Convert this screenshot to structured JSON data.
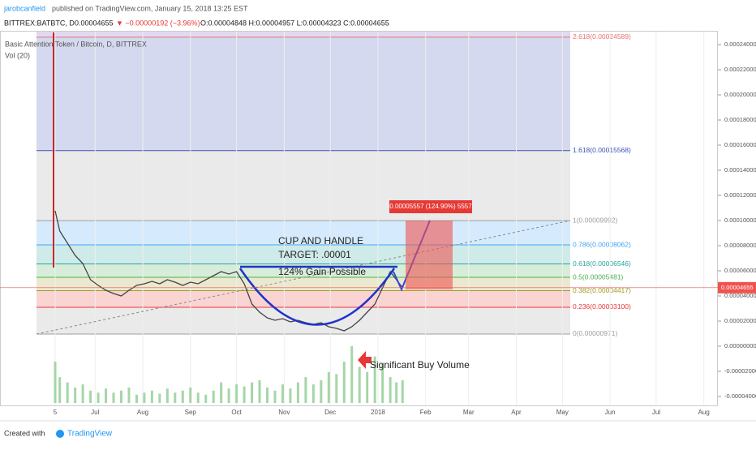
{
  "header": {
    "author": "jarobcanfield",
    "published": "published on TradingView.com, January 15, 2018 13:25 EST",
    "ticker": "BITTREX:BATBTC, D",
    "last": "0.00004655",
    "change": "▼ −0.00000192 (−3.96%)",
    "ohlc": "O:0.00004848 H:0.00004957 L:0.00004323 C:0.00004655"
  },
  "legend": {
    "symbol": "Basic Attention Token / Bitcoin, D, BITTREX",
    "volume": "Vol (20)"
  },
  "chart_data": {
    "type": "line",
    "color": "#444444",
    "x": [
      0,
      3,
      8,
      13,
      18,
      23,
      28,
      33,
      38,
      43,
      48,
      53,
      58,
      63,
      68,
      73,
      78,
      83,
      88,
      93,
      98,
      103,
      108,
      113,
      118,
      123,
      128,
      133,
      138,
      143,
      148,
      153,
      158,
      163,
      168,
      173,
      178,
      183,
      188,
      193,
      198,
      203,
      208,
      213,
      218,
      222,
      226
    ],
    "values": [
      0.00010774,
      9.161e-05,
      8.194e-05,
      7.226e-05,
      6.581e-05,
      5.29e-05,
      4.839e-05,
      4.452e-05,
      4.194e-05,
      4e-05,
      4.452e-05,
      4.839e-05,
      4.968e-05,
      5.161e-05,
      4.968e-05,
      5.29e-05,
      5.097e-05,
      4.839e-05,
      5.097e-05,
      4.968e-05,
      5.29e-05,
      5.613e-05,
      5.935e-05,
      5.742e-05,
      5.935e-05,
      4.968e-05,
      3.355e-05,
      2.71e-05,
      2.258e-05,
      2.065e-05,
      2.194e-05,
      1.935e-05,
      2.065e-05,
      1.871e-05,
      1.742e-05,
      1.871e-05,
      1.548e-05,
      1.419e-05,
      1.226e-05,
      1.548e-05,
      2.065e-05,
      2.71e-05,
      3.355e-05,
      4.645e-05,
      5.935e-05,
      5.29e-05,
      4.655e-05
    ],
    "xticks": [
      {
        "value": 0,
        "label": "5"
      },
      {
        "value": 26,
        "label": "Jul"
      },
      {
        "value": 57,
        "label": "Aug"
      },
      {
        "value": 88,
        "label": "Sep"
      },
      {
        "value": 118,
        "label": "Oct"
      },
      {
        "value": 149,
        "label": "Nov"
      },
      {
        "value": 179,
        "label": "Dec"
      },
      {
        "value": 210,
        "label": "2018"
      },
      {
        "value": 241,
        "label": "Feb"
      },
      {
        "value": 269,
        "label": "Mar"
      },
      {
        "value": 300,
        "label": "Apr"
      },
      {
        "value": 330,
        "label": "May"
      },
      {
        "value": 361,
        "label": "Jun"
      },
      {
        "value": 391,
        "label": "Jul"
      },
      {
        "value": 422,
        "label": "Aug"
      }
    ],
    "yticks": [
      {
        "value": 0.00024,
        "label": "0.00024000"
      },
      {
        "value": 0.00022,
        "label": "0.00022000"
      },
      {
        "value": 0.0002,
        "label": "0.00020000"
      },
      {
        "value": 0.00018,
        "label": "0.00018000"
      },
      {
        "value": 0.00016,
        "label": "0.00016000"
      },
      {
        "value": 0.00014,
        "label": "0.00014000"
      },
      {
        "value": 0.00012,
        "label": "0.00012000"
      },
      {
        "value": 0.0001,
        "label": "0.00010000"
      },
      {
        "value": 8e-05,
        "label": "0.00008000"
      },
      {
        "value": 6e-05,
        "label": "0.00006000"
      },
      {
        "value": 4e-05,
        "label": "0.00004000"
      },
      {
        "value": 2e-05,
        "label": "0.00002000"
      },
      {
        "value": 0,
        "label": "0.00000000"
      },
      {
        "value": -2e-05,
        "label": "-0.00002000"
      },
      {
        "value": -4e-05,
        "label": "-0.00004000"
      }
    ],
    "last_price": {
      "value": 4.655e-05,
      "label": "0.00004655",
      "color": "#ef5350"
    },
    "volume": {
      "color": "#a5d6a7",
      "values": [
        40,
        25,
        20,
        15,
        18,
        12,
        10,
        14,
        10,
        12,
        15,
        8,
        10,
        12,
        9,
        14,
        10,
        12,
        15,
        10,
        8,
        12,
        20,
        14,
        18,
        16,
        20,
        22,
        15,
        12,
        18,
        14,
        20,
        25,
        18,
        22,
        30,
        28,
        40,
        55,
        35,
        30,
        45,
        38,
        25,
        20,
        22
      ]
    },
    "fib_levels": [
      {
        "label": "2.618(0.00024589)",
        "value": 0.00024589,
        "color": "#e57373"
      },
      {
        "label": "1.618(0.00015568)",
        "value": 0.00015568,
        "color": "#3f51b5"
      },
      {
        "label": "1(0.00009992)",
        "value": 9.992e-05,
        "color": "#9e9e9e"
      },
      {
        "label": "0.786(0.00008062)",
        "value": 8.062e-05,
        "color": "#42a5f5"
      },
      {
        "label": "0.618(0.00006546)",
        "value": 6.546e-05,
        "color": "#26a69a"
      },
      {
        "label": "0.5(0.00005481)",
        "value": 5.481e-05,
        "color": "#4caf50"
      },
      {
        "label": "0.382(0.00004417)",
        "value": 4.417e-05,
        "color": "#9e9d24"
      },
      {
        "label": "0.236(0.00003100)",
        "value": 3.1e-05,
        "color": "#e53935"
      },
      {
        "label": "0(0.00000971)",
        "value": 9.71e-06,
        "color": "#9e9e9e"
      }
    ],
    "annotations": {
      "pattern": "CUP AND HANDLE",
      "target": "TARGET: .00001",
      "gain": "124% Gain Possible",
      "volume_note": "Significant Buy Volume",
      "measure": "0.00005557 (124.90%) 5557"
    }
  },
  "footer": {
    "created": "Created with",
    "brand": "TradingView"
  }
}
